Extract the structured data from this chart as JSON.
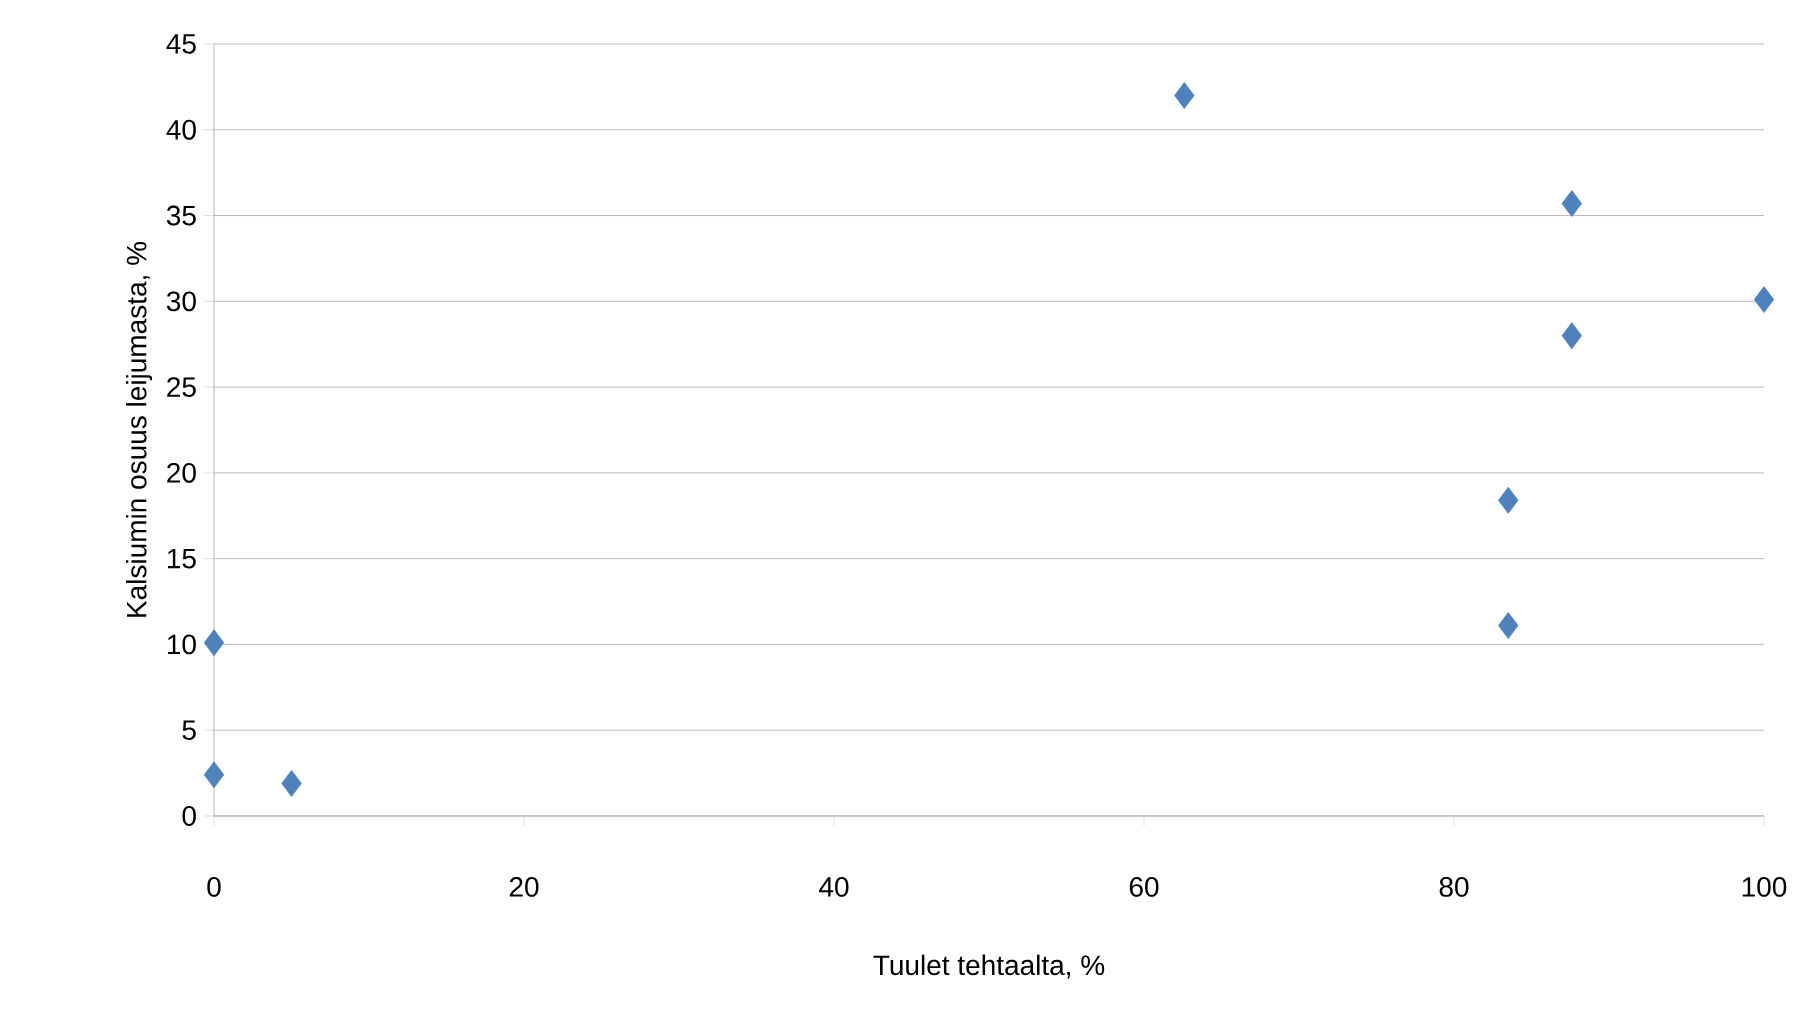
{
  "chart_data": {
    "type": "scatter",
    "xlabel": "Tuulet tehtaalta, %",
    "ylabel": "Kalsiumin osuus leijumasta, %",
    "x": [
      0,
      0,
      5,
      62.6,
      87.6,
      100,
      87.6,
      83.5,
      83.5
    ],
    "values": [
      10.1,
      2.4,
      1.9,
      42.0,
      35.7,
      30.1,
      28.0,
      18.4,
      11.1
    ],
    "color": "#4f81bd",
    "marker": "diamond",
    "xlim": [
      0,
      100
    ],
    "xticks": [
      0,
      20,
      40,
      60,
      80,
      100
    ],
    "ylim": [
      0,
      45
    ],
    "yticks": [
      0,
      5,
      10,
      15,
      20,
      25,
      30,
      35,
      40,
      45
    ],
    "grid": "y"
  }
}
